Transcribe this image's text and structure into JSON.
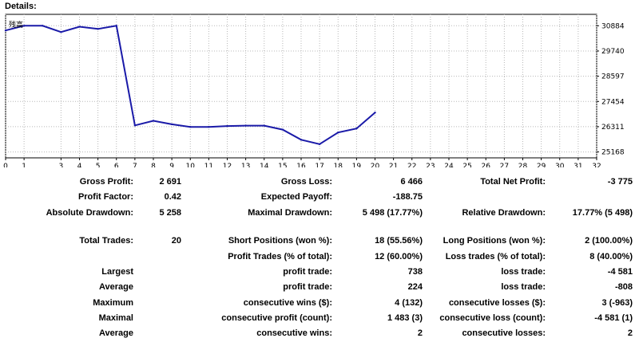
{
  "header": {
    "title": "Details:"
  },
  "chart_data": {
    "type": "line",
    "legend_label": "残高",
    "line_color": "#1a1aa8",
    "x_ticks": [
      0,
      1,
      3,
      4,
      5,
      6,
      7,
      8,
      9,
      10,
      11,
      12,
      13,
      14,
      15,
      16,
      17,
      18,
      19,
      20,
      21,
      22,
      23,
      24,
      25,
      26,
      27,
      28,
      29,
      30,
      31,
      32
    ],
    "y_ticks": [
      30884,
      29740,
      28597,
      27454,
      26311,
      25168
    ],
    "xlim": [
      0,
      32
    ],
    "ylim": [
      24900,
      31400
    ],
    "grid": true,
    "series": [
      {
        "x": [
          0,
          1,
          2,
          3,
          4,
          5,
          6,
          7,
          8,
          9,
          10,
          11,
          12,
          13,
          14,
          15,
          16,
          17,
          18,
          19,
          20
        ],
        "y": [
          30670,
          30884,
          30884,
          30600,
          30840,
          30740,
          30884,
          26370,
          26580,
          26420,
          26300,
          26300,
          26340,
          26360,
          26360,
          26180,
          25720,
          25520,
          26050,
          26230,
          26950
        ]
      }
    ]
  },
  "stats": {
    "gross_profit": {
      "label": "Gross Profit:",
      "value": "2 691"
    },
    "gross_loss": {
      "label": "Gross Loss:",
      "value": "6 466"
    },
    "total_net_profit": {
      "label": "Total Net Profit:",
      "value": "-3 775"
    },
    "profit_factor": {
      "label": "Profit Factor:",
      "value": "0.42"
    },
    "expected_payoff": {
      "label": "Expected Payoff:",
      "value": "-188.75"
    },
    "absolute_drawdown": {
      "label": "Absolute Drawdown:",
      "value": "5 258"
    },
    "maximal_drawdown": {
      "label": "Maximal Drawdown:",
      "value": "5 498 (17.77%)"
    },
    "relative_drawdown": {
      "label": "Relative Drawdown:",
      "value": "17.77% (5 498)"
    },
    "total_trades": {
      "label": "Total Trades:",
      "value": "20"
    },
    "short_positions": {
      "label": "Short Positions (won %):",
      "value": "18 (55.56%)"
    },
    "long_positions": {
      "label": "Long Positions (won %):",
      "value": "2 (100.00%)"
    },
    "profit_trades": {
      "label": "Profit Trades (% of total):",
      "value": "12 (60.00%)"
    },
    "loss_trades": {
      "label": "Loss trades (% of total):",
      "value": "8 (40.00%)"
    },
    "largest": {
      "label": "Largest",
      "profit_label": "profit trade:",
      "profit_value": "738",
      "loss_label": "loss trade:",
      "loss_value": "-4 581"
    },
    "average": {
      "label": "Average",
      "profit_label": "profit trade:",
      "profit_value": "224",
      "loss_label": "loss trade:",
      "loss_value": "-808"
    },
    "maximum": {
      "label": "Maximum",
      "profit_label": "consecutive wins ($):",
      "profit_value": "4 (132)",
      "loss_label": "consecutive losses ($):",
      "loss_value": "3 (-963)"
    },
    "maximal": {
      "label": "Maximal",
      "profit_label": "consecutive profit (count):",
      "profit_value": "1 483 (3)",
      "loss_label": "consecutive loss (count):",
      "loss_value": "-4 581 (1)"
    },
    "average_consec": {
      "label": "Average",
      "profit_label": "consecutive wins:",
      "profit_value": "2",
      "loss_label": "consecutive losses:",
      "loss_value": "2"
    }
  }
}
